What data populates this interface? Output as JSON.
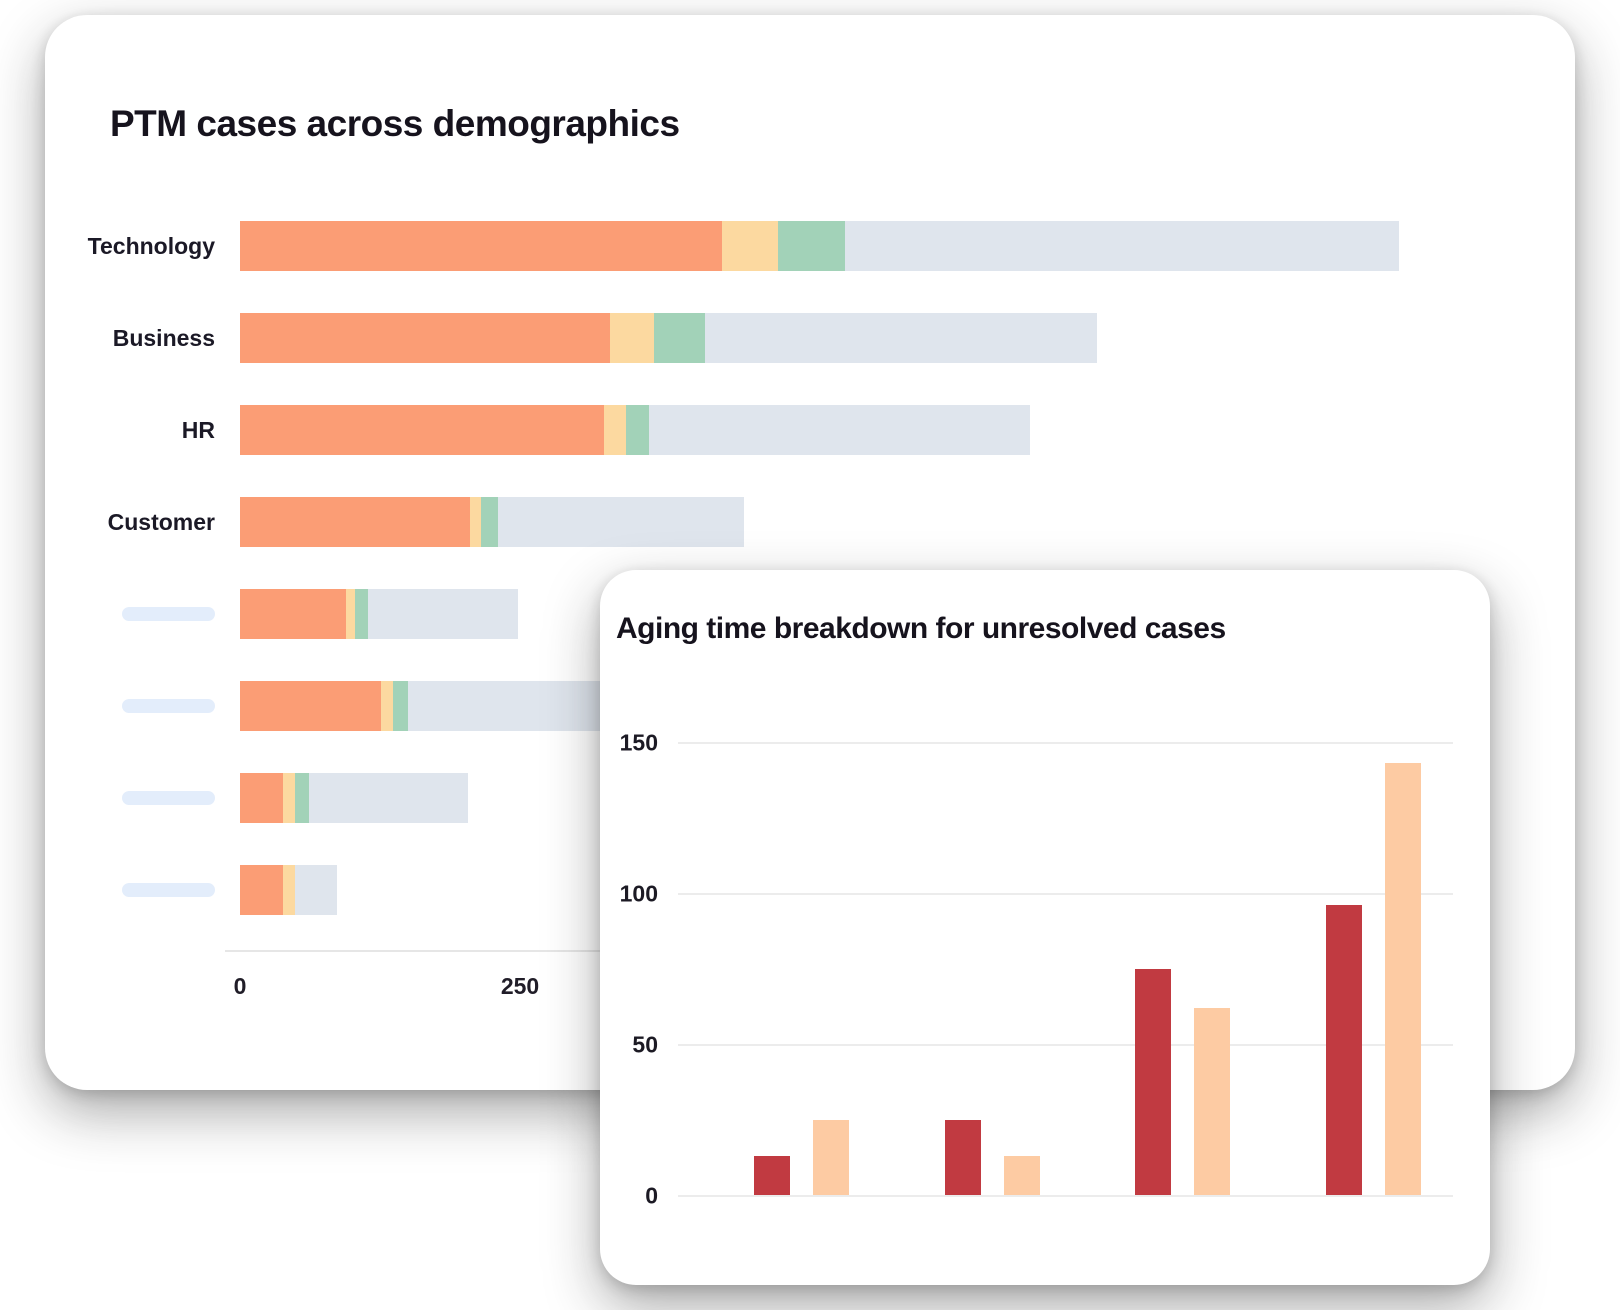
{
  "card1": {
    "title": "PTM cases across demographics",
    "x_axis_tick_labels": [
      "0",
      "250"
    ],
    "categories": [
      {
        "label": "Technology",
        "redacted": false
      },
      {
        "label": "Business",
        "redacted": false
      },
      {
        "label": "HR",
        "redacted": false
      },
      {
        "label": "Customer",
        "redacted": false
      },
      {
        "label": "",
        "redacted": true
      },
      {
        "label": "",
        "redacted": true
      },
      {
        "label": "",
        "redacted": true
      },
      {
        "label": "",
        "redacted": true
      }
    ]
  },
  "card2": {
    "title": "Aging time breakdown for unresolved cases",
    "y_axis_tick_labels": [
      "0",
      "50",
      "100",
      "150"
    ]
  },
  "colors": {
    "salmon": "#FB9D75",
    "cream": "#FCD9A0",
    "green": "#A2D2B8",
    "gray_blue": "#DFE5ED",
    "dark_red": "#C13A41",
    "peach": "#FDCBA3",
    "redacted_pill": "#E3EDFB",
    "axis_line": "#E6E6E6",
    "gridline": "#ECECEC",
    "text": "#16131d"
  },
  "chart_data": [
    {
      "type": "bar",
      "orientation": "horizontal",
      "stacked": true,
      "title": "PTM cases across demographics",
      "categories": [
        "Technology",
        "Business",
        "HR",
        "Customer",
        "",
        "",
        "",
        ""
      ],
      "note": "categories 5-8 are redacted placeholder pills; no legend shown",
      "series": [
        {
          "name": "salmon",
          "color": "#FB9D75",
          "values": [
            430,
            330,
            325,
            205,
            95,
            126,
            38,
            38
          ]
        },
        {
          "name": "cream",
          "color": "#FCD9A0",
          "values": [
            50,
            40,
            20,
            10,
            8,
            11,
            11,
            11
          ]
        },
        {
          "name": "green",
          "color": "#A2D2B8",
          "values": [
            60,
            45,
            20,
            15,
            11,
            13,
            13,
            0
          ]
        },
        {
          "name": "gray",
          "color": "#DFE5ED",
          "values": [
            495,
            350,
            340,
            220,
            134,
            225,
            142,
            38
          ]
        }
      ],
      "xlim": [
        0,
        1050
      ],
      "x_ticks": [
        0,
        250
      ],
      "grid": false
    },
    {
      "type": "bar",
      "orientation": "vertical",
      "grouped": true,
      "title": "Aging time breakdown for unresolved cases",
      "categories": [
        "",
        "",
        "",
        ""
      ],
      "note": "no x-axis category labels visible; no legend shown",
      "series": [
        {
          "name": "dark-red",
          "color": "#C13A41",
          "values": [
            13,
            25,
            75,
            96
          ]
        },
        {
          "name": "peach",
          "color": "#FDCBA3",
          "values": [
            25,
            13,
            62,
            143
          ]
        }
      ],
      "ylim": [
        0,
        155
      ],
      "y_ticks": [
        0,
        50,
        100,
        150
      ],
      "grid": true,
      "legend": "none"
    }
  ]
}
